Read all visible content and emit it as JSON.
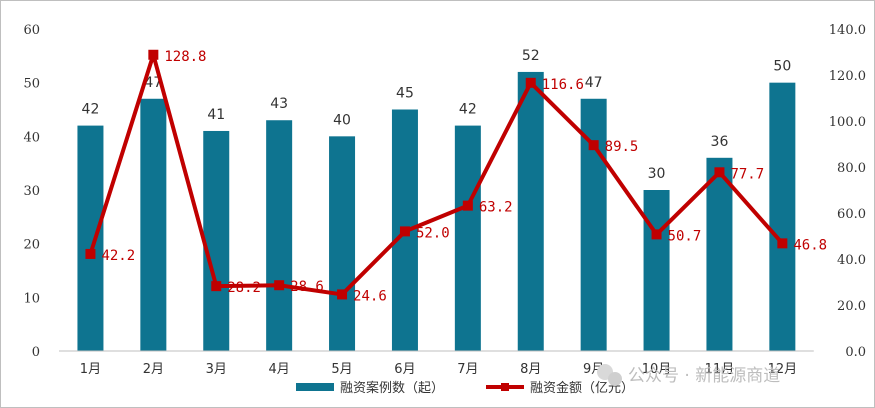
{
  "chart_data": {
    "type": "bar+line",
    "categories": [
      "1月",
      "2月",
      "3月",
      "4月",
      "5月",
      "6月",
      "7月",
      "8月",
      "9月",
      "10月",
      "11月",
      "12月"
    ],
    "series": [
      {
        "name": "融资案例数（起）",
        "type": "bar",
        "axis": "left",
        "color": "#0e7490",
        "values": [
          42,
          47,
          41,
          43,
          40,
          45,
          42,
          52,
          47,
          30,
          36,
          50
        ],
        "labels": [
          "42",
          "47",
          "41",
          "43",
          "40",
          "45",
          "42",
          "52",
          "47",
          "30",
          "36",
          "50"
        ]
      },
      {
        "name": "融资金额（亿元）",
        "type": "line",
        "axis": "right",
        "color": "#c00000",
        "values": [
          42.2,
          128.8,
          28.2,
          28.6,
          24.6,
          52.0,
          63.2,
          116.6,
          89.5,
          50.7,
          77.7,
          46.8
        ],
        "labels": [
          "42.2",
          "128.8",
          "28.2",
          "28.6",
          "24.6",
          "52.0",
          "63.2",
          "116.6",
          "89.5",
          "50.7",
          "77.7",
          "46.8"
        ]
      }
    ],
    "y_left": {
      "min": 0,
      "max": 60,
      "ticks": [
        "0",
        "10",
        "20",
        "30",
        "40",
        "50",
        "60"
      ]
    },
    "y_right": {
      "min": 0,
      "max": 140,
      "ticks": [
        "0.0",
        "20.0",
        "40.0",
        "60.0",
        "80.0",
        "100.0",
        "120.0",
        "140.0"
      ]
    },
    "grid": false,
    "legend": "bottom"
  },
  "watermark": {
    "icon": "wechat-icon",
    "text": "公众号 · 新能源商道"
  }
}
